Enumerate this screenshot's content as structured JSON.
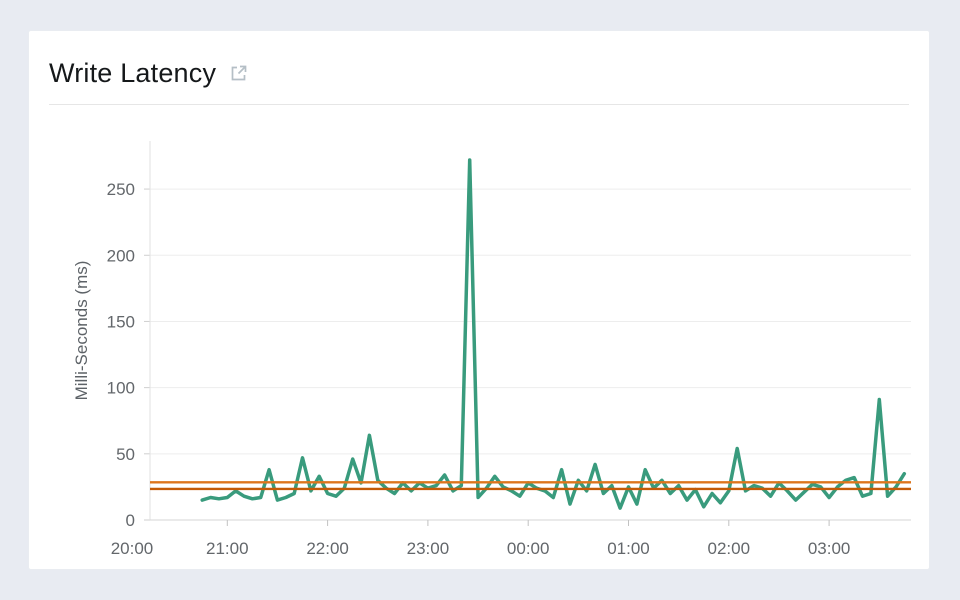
{
  "header": {
    "title": "Write Latency",
    "link_icon": "external-link"
  },
  "chart_data": {
    "type": "line",
    "title": "Write Latency",
    "xlabel": "",
    "ylabel": "Milli-Seconds (ms)",
    "x_tick_labels": [
      "20:00",
      "21:00",
      "22:00",
      "23:00",
      "00:00",
      "01:00",
      "02:00",
      "03:00"
    ],
    "y_ticks": [
      0,
      50,
      100,
      150,
      200,
      250
    ],
    "ylim": [
      0,
      286
    ],
    "x_range": "20:00 to 03:49",
    "grid": "horizontal",
    "legend": "none",
    "series": [
      {
        "name": "write-latency-ms",
        "color": "#399b7d",
        "start_time": "20:45",
        "start_hours_after_20_00": 0.75,
        "interval_minutes": 5,
        "values": [
          15,
          17,
          16,
          17,
          22,
          18,
          16,
          17,
          38,
          15,
          17,
          20,
          47,
          22,
          33,
          20,
          18,
          24,
          46,
          28,
          64,
          30,
          24,
          20,
          28,
          22,
          28,
          24,
          26,
          34,
          22,
          26,
          272,
          17,
          24,
          33,
          25,
          22,
          18,
          28,
          24,
          22,
          17,
          38,
          12,
          30,
          22,
          42,
          20,
          26,
          9,
          25,
          12,
          38,
          24,
          30,
          20,
          26,
          15,
          23,
          10,
          20,
          13,
          22,
          54,
          22,
          26,
          24,
          18,
          28,
          22,
          15,
          21,
          27,
          25,
          17,
          25,
          30,
          32,
          18,
          20,
          91,
          18,
          25,
          35
        ]
      }
    ],
    "reference_lines": [
      {
        "name": "upper-reference",
        "value": 28.5,
        "color": "#dd751c"
      },
      {
        "name": "lower-reference",
        "value": 23.5,
        "color": "#c45a06"
      }
    ]
  }
}
